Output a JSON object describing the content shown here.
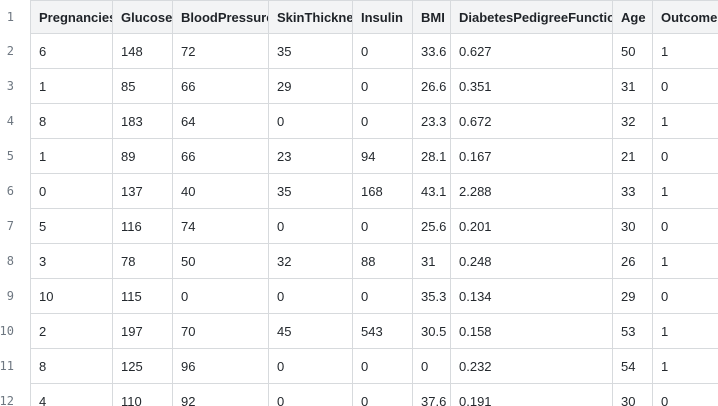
{
  "grid": {
    "columns": [
      "Pregnancies",
      "Glucose",
      "BloodPressure",
      "SkinThickness",
      "Insulin",
      "BMI",
      "DiabetesPedigreeFunction",
      "Age",
      "Outcome"
    ],
    "row_numbers": [
      "1",
      "2",
      "3",
      "4",
      "5",
      "6",
      "7",
      "8",
      "9",
      "10",
      "11",
      "12"
    ],
    "rows": [
      [
        "6",
        "148",
        "72",
        "35",
        "0",
        "33.6",
        "0.627",
        "50",
        "1"
      ],
      [
        "1",
        "85",
        "66",
        "29",
        "0",
        "26.6",
        "0.351",
        "31",
        "0"
      ],
      [
        "8",
        "183",
        "64",
        "0",
        "0",
        "23.3",
        "0.672",
        "32",
        "1"
      ],
      [
        "1",
        "89",
        "66",
        "23",
        "94",
        "28.1",
        "0.167",
        "21",
        "0"
      ],
      [
        "0",
        "137",
        "40",
        "35",
        "168",
        "43.1",
        "2.288",
        "33",
        "1"
      ],
      [
        "5",
        "116",
        "74",
        "0",
        "0",
        "25.6",
        "0.201",
        "30",
        "0"
      ],
      [
        "3",
        "78",
        "50",
        "32",
        "88",
        "31",
        "0.248",
        "26",
        "1"
      ],
      [
        "10",
        "115",
        "0",
        "0",
        "0",
        "35.3",
        "0.134",
        "29",
        "0"
      ],
      [
        "2",
        "197",
        "70",
        "45",
        "543",
        "30.5",
        "0.158",
        "53",
        "1"
      ],
      [
        "8",
        "125",
        "96",
        "0",
        "0",
        "0",
        "0.232",
        "54",
        "1"
      ],
      [
        "4",
        "110",
        "92",
        "0",
        "0",
        "37.6",
        "0.191",
        "30",
        "0"
      ]
    ]
  },
  "colors": {
    "background": "#ffffff",
    "header_bg": "#f3f4f5",
    "grid_border": "#d7dadd",
    "cell_text": "#24292e",
    "header_text": "#1f2328",
    "row_number_text": "#6e7781"
  }
}
